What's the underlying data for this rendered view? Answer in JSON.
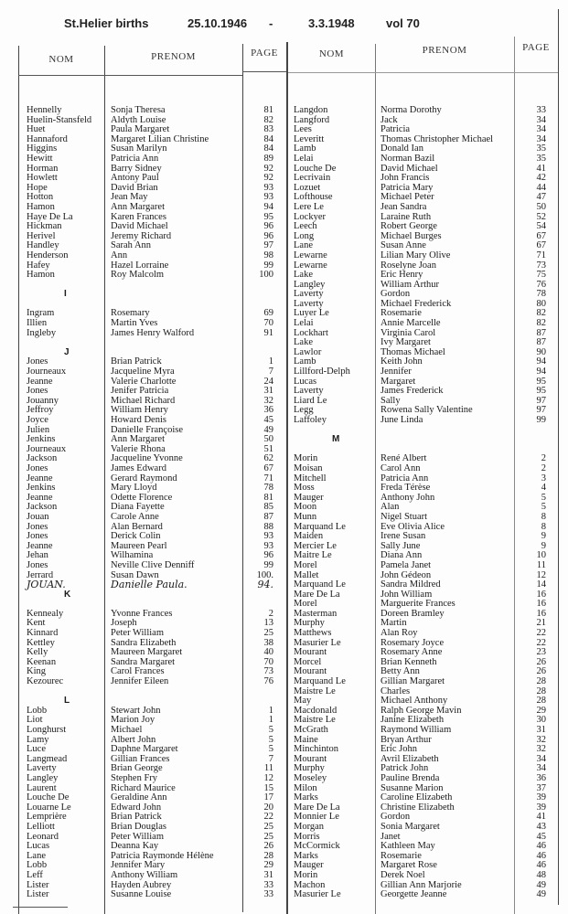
{
  "header": {
    "title": "St.Helier births",
    "date_from": "25.10.1946",
    "dash": "-",
    "date_to": "3.3.1948",
    "volume": "vol 70"
  },
  "columns_header": {
    "nom": "NOM",
    "prenom": "PRENOM",
    "page": "PAGE"
  },
  "left": {
    "sections": [
      {
        "letter": "",
        "entries": [
          {
            "nom": "Hennelly",
            "prenom": "Sonja Theresa",
            "page": "81"
          },
          {
            "nom": "Huelin-Stansfeld",
            "prenom": "Aldyth Louise",
            "page": "82"
          },
          {
            "nom": "Huet",
            "prenom": "Paula Margaret",
            "page": "83"
          },
          {
            "nom": "Hannaford",
            "prenom": "Margaret Lilian Christine",
            "page": "84"
          },
          {
            "nom": "Higgins",
            "prenom": "Susan Marilyn",
            "page": "84"
          },
          {
            "nom": "Hewitt",
            "prenom": "Patricia Ann",
            "page": "89"
          },
          {
            "nom": "Horman",
            "prenom": "Barry Sidney",
            "page": "92"
          },
          {
            "nom": "Howlett",
            "prenom": "Antony Paul",
            "page": "92"
          },
          {
            "nom": "Hope",
            "prenom": "David Brian",
            "page": "93"
          },
          {
            "nom": "Hotton",
            "prenom": "Jean May",
            "page": "93"
          },
          {
            "nom": "Hamon",
            "prenom": "Ann Margaret",
            "page": "94"
          },
          {
            "nom": "Haye De La",
            "prenom": "Karen Frances",
            "page": "95"
          },
          {
            "nom": "Hickman",
            "prenom": "David Michael",
            "page": "96"
          },
          {
            "nom": "Herivel",
            "prenom": "Jeremy Richard",
            "page": "96"
          },
          {
            "nom": "Handley",
            "prenom": "Sarah Ann",
            "page": "97"
          },
          {
            "nom": "Henderson",
            "prenom": "Ann",
            "page": "98"
          },
          {
            "nom": "Hafey",
            "prenom": "Hazel Lorraine",
            "page": "99"
          },
          {
            "nom": "Hamon",
            "prenom": "Roy Malcolm",
            "page": "100"
          }
        ]
      },
      {
        "letter": "I",
        "entries": [
          {
            "nom": "Ingram",
            "prenom": "Rosemary",
            "page": "69"
          },
          {
            "nom": "Illien",
            "prenom": "Martin Yves",
            "page": "70"
          },
          {
            "nom": "Ingleby",
            "prenom": "James Henry Walford",
            "page": "91"
          }
        ]
      },
      {
        "letter": "J",
        "entries": [
          {
            "nom": "Jones",
            "prenom": "Brian Patrick",
            "page": "1"
          },
          {
            "nom": "Journeaux",
            "prenom": "Jacqueline Myra",
            "page": "7"
          },
          {
            "nom": "Jeanne",
            "prenom": "Valerie Charlotte",
            "page": "24"
          },
          {
            "nom": "Jones",
            "prenom": "Jenifer Patricia",
            "page": "31"
          },
          {
            "nom": "Jouanny",
            "prenom": "Michael Richard",
            "page": "32"
          },
          {
            "nom": "Jeffroy",
            "prenom": "William Henry",
            "page": "36"
          },
          {
            "nom": "Joyce",
            "prenom": "Howard Denis",
            "page": "45"
          },
          {
            "nom": "Julien",
            "prenom": "Danielle Françoise",
            "page": "49"
          },
          {
            "nom": "Jenkins",
            "prenom": "Ann Margaret",
            "page": "50"
          },
          {
            "nom": "Journeaux",
            "prenom": "Valerie Rhona",
            "page": "51"
          },
          {
            "nom": "Jackson",
            "prenom": "Jacqueline Yvonne",
            "page": "62"
          },
          {
            "nom": "Jones",
            "prenom": "James Edward",
            "page": "67"
          },
          {
            "nom": "Jeanne",
            "prenom": "Gerard Raymond",
            "page": "71"
          },
          {
            "nom": "Jenkins",
            "prenom": "Mary Lloyd",
            "page": "78"
          },
          {
            "nom": "Jeanne",
            "prenom": "Odette Florence",
            "page": "81"
          },
          {
            "nom": "Jackson",
            "prenom": "Diana Fayette",
            "page": "85"
          },
          {
            "nom": "Jouan",
            "prenom": "Carole Anne",
            "page": "87"
          },
          {
            "nom": "Jones",
            "prenom": "Alan Bernard",
            "page": "88"
          },
          {
            "nom": "Jones",
            "prenom": "Derick Colin",
            "page": "93"
          },
          {
            "nom": "Jeanne",
            "prenom": "Maureen Pearl",
            "page": "93"
          },
          {
            "nom": "Jehan",
            "prenom": "Wilhamina",
            "page": "96"
          },
          {
            "nom": "Jones",
            "prenom": "Neville Clive Denniff",
            "page": "99"
          },
          {
            "nom": "Jerrard",
            "prenom": "Susan Dawn",
            "page": "100."
          },
          {
            "nom": "JOUAN.",
            "prenom": "Danielle Paula.",
            "page": "94.",
            "handwritten": true
          }
        ]
      },
      {
        "letter": "K",
        "entries": [
          {
            "nom": "Kennealy",
            "prenom": "Yvonne Frances",
            "page": "2"
          },
          {
            "nom": "Kent",
            "prenom": "Joseph",
            "page": "13"
          },
          {
            "nom": "Kinnard",
            "prenom": "Peter William",
            "page": "25"
          },
          {
            "nom": "Kettley",
            "prenom": "Sandra Elizabeth",
            "page": "38"
          },
          {
            "nom": "Kelly",
            "prenom": "Maureen Margaret",
            "page": "40"
          },
          {
            "nom": "Keenan",
            "prenom": "Sandra Margaret",
            "page": "70"
          },
          {
            "nom": "King",
            "prenom": "Carol Frances",
            "page": "73"
          },
          {
            "nom": "Kezourec",
            "prenom": "Jennifer Eileen",
            "page": "76"
          }
        ]
      },
      {
        "letter": "L",
        "entries": [
          {
            "nom": "Lobb",
            "prenom": "Stewart John",
            "page": "1"
          },
          {
            "nom": "Liot",
            "prenom": "Marion Joy",
            "page": "1"
          },
          {
            "nom": "Longhurst",
            "prenom": "Michael",
            "page": "5"
          },
          {
            "nom": "Lamy",
            "prenom": "Albert John",
            "page": "5"
          },
          {
            "nom": "Luce",
            "prenom": "Daphne Margaret",
            "page": "5"
          },
          {
            "nom": "Langmead",
            "prenom": "Gillian Frances",
            "page": "7"
          },
          {
            "nom": "Laverty",
            "prenom": "Brian George",
            "page": "11"
          },
          {
            "nom": "Langley",
            "prenom": "Stephen Fry",
            "page": "12"
          },
          {
            "nom": "Laurent",
            "prenom": "Richard Maurice",
            "page": "15"
          },
          {
            "nom": "Louche De",
            "prenom": "Geraldine Ann",
            "page": "17"
          },
          {
            "nom": "Louarne Le",
            "prenom": "Edward John",
            "page": "20"
          },
          {
            "nom": "Lemprière",
            "prenom": "Brian Patrick",
            "page": "22"
          },
          {
            "nom": "Lelliott",
            "prenom": "Brian Douglas",
            "page": "25"
          },
          {
            "nom": "Leonard",
            "prenom": "Peter William",
            "page": "25"
          },
          {
            "nom": "Lucas",
            "prenom": "Deanna Kay",
            "page": "26"
          },
          {
            "nom": "Lane",
            "prenom": "Patricia Raymonde Hélène",
            "page": "28"
          },
          {
            "nom": "Lobb",
            "prenom": "Jennifer Mary",
            "page": "29"
          },
          {
            "nom": "Leff",
            "prenom": "Anthony William",
            "page": "31"
          },
          {
            "nom": "Lister",
            "prenom": "Hayden Aubrey",
            "page": "33"
          },
          {
            "nom": "Lister",
            "prenom": "Susanne Louise",
            "page": "33"
          }
        ]
      }
    ]
  },
  "right": {
    "sections": [
      {
        "letter": "",
        "entries": [
          {
            "nom": "Langdon",
            "prenom": "Norma Dorothy",
            "page": "33"
          },
          {
            "nom": "Langford",
            "prenom": "Jack",
            "page": "34"
          },
          {
            "nom": "Lees",
            "prenom": "Patricia",
            "page": "34"
          },
          {
            "nom": "Leveritt",
            "prenom": "Thomas Christopher Michael",
            "page": "34"
          },
          {
            "nom": "Lamb",
            "prenom": "Donald Ian",
            "page": "35"
          },
          {
            "nom": "Lelai",
            "prenom": "Norman Bazil",
            "page": "35"
          },
          {
            "nom": "Louche De",
            "prenom": "David Michael",
            "page": "41"
          },
          {
            "nom": "Lecrivain",
            "prenom": "John Francis",
            "page": "42"
          },
          {
            "nom": "Lozuet",
            "prenom": "Patricia Mary",
            "page": "44"
          },
          {
            "nom": "Lofthouse",
            "prenom": "Michael Peter",
            "page": "47"
          },
          {
            "nom": "Lere Le",
            "prenom": "Jean Sandra",
            "page": "50"
          },
          {
            "nom": "Lockyer",
            "prenom": "Laraine Ruth",
            "page": "52"
          },
          {
            "nom": "Leech",
            "prenom": "Robert George",
            "page": "54"
          },
          {
            "nom": "Long",
            "prenom": "Michael Burges",
            "page": "67"
          },
          {
            "nom": "Lane",
            "prenom": "Susan Anne",
            "page": "67"
          },
          {
            "nom": "Lewarne",
            "prenom": "Lilian Mary Olive",
            "page": "71"
          },
          {
            "nom": "Lewarne",
            "prenom": "Roselyne Joan",
            "page": "73"
          },
          {
            "nom": "Lake",
            "prenom": "Eric Henry",
            "page": "75"
          },
          {
            "nom": "Langley",
            "prenom": "William Arthur",
            "page": "76"
          },
          {
            "nom": "Laverty",
            "prenom": "Gordon",
            "page": "78"
          },
          {
            "nom": "Laverty",
            "prenom": "Michael Frederick",
            "page": "80"
          },
          {
            "nom": "Luyer Le",
            "prenom": "Rosemarie",
            "page": "82"
          },
          {
            "nom": "Lelai",
            "prenom": "Annie Marcelle",
            "page": "82"
          },
          {
            "nom": "Lockhart",
            "prenom": "Virginia Carol",
            "page": "87"
          },
          {
            "nom": "Lake",
            "prenom": "Ivy Margaret",
            "page": "87"
          },
          {
            "nom": "Lawlor",
            "prenom": "Thomas Michael",
            "page": "90"
          },
          {
            "nom": "Lamb",
            "prenom": "Keith John",
            "page": "94"
          },
          {
            "nom": "Lillford-Delph",
            "prenom": "Jennifer",
            "page": "94"
          },
          {
            "nom": "Lucas",
            "prenom": "Margaret",
            "page": "95"
          },
          {
            "nom": "Laverty",
            "prenom": "James Frederick",
            "page": "95"
          },
          {
            "nom": "Liard Le",
            "prenom": "Sally",
            "page": "97"
          },
          {
            "nom": "Legg",
            "prenom": "Rowena Sally Valentine",
            "page": "97"
          },
          {
            "nom": "Laffoley",
            "prenom": "June Linda",
            "page": "99"
          }
        ]
      },
      {
        "letter": "M",
        "entries": [
          {
            "nom": "Morin",
            "prenom": "René Albert",
            "page": "2"
          },
          {
            "nom": "Moisan",
            "prenom": "Carol Ann",
            "page": "2"
          },
          {
            "nom": "Mitchell",
            "prenom": "Patricia Ann",
            "page": "3"
          },
          {
            "nom": "Moss",
            "prenom": "Freda Térèse",
            "page": "4"
          },
          {
            "nom": "Mauger",
            "prenom": "Anthony John",
            "page": "5"
          },
          {
            "nom": "Moon",
            "prenom": "Alan",
            "page": "5"
          },
          {
            "nom": "Munn",
            "prenom": "Nigel Stuart",
            "page": "8"
          },
          {
            "nom": "Marquand Le",
            "prenom": "Eve Olivia Alice",
            "page": "8"
          },
          {
            "nom": "Maiden",
            "prenom": "Irene Susan",
            "page": "9"
          },
          {
            "nom": "Mercier Le",
            "prenom": "Sally June",
            "page": "9"
          },
          {
            "nom": "Maitre Le",
            "prenom": "Diana Ann",
            "page": "10"
          },
          {
            "nom": "Morel",
            "prenom": "Pamela Janet",
            "page": "11"
          },
          {
            "nom": "Mallet",
            "prenom": "John Gédeon",
            "page": "12"
          },
          {
            "nom": "Marquand Le",
            "prenom": "Sandra Mildred",
            "page": "14"
          },
          {
            "nom": "Mare De La",
            "prenom": "John William",
            "page": "16"
          },
          {
            "nom": "Morel",
            "prenom": "Marguerite Frances",
            "page": "16"
          },
          {
            "nom": "Masterman",
            "prenom": "Doreen Bramley",
            "page": "16"
          },
          {
            "nom": "Murphy",
            "prenom": "Martin",
            "page": "21"
          },
          {
            "nom": "Matthews",
            "prenom": "Alan Roy",
            "page": "22"
          },
          {
            "nom": "Masurier Le",
            "prenom": "Rosemary Joyce",
            "page": "22"
          },
          {
            "nom": "Mourant",
            "prenom": "Rosemary Anne",
            "page": "23"
          },
          {
            "nom": "Morcel",
            "prenom": "Brian Kenneth",
            "page": "26"
          },
          {
            "nom": "Mourant",
            "prenom": "Betty Ann",
            "page": "26"
          },
          {
            "nom": "Marquand Le",
            "prenom": "Gillian Margaret",
            "page": "28"
          },
          {
            "nom": "Maistre Le",
            "prenom": "Charles",
            "page": "28"
          },
          {
            "nom": "May",
            "prenom": "Michael Anthony",
            "page": "28"
          },
          {
            "nom": "Macdonald",
            "prenom": "Ralph George Mavin",
            "page": "29"
          },
          {
            "nom": "Maistre Le",
            "prenom": "Janine Elizabeth",
            "page": "30"
          },
          {
            "nom": "McGrath",
            "prenom": "Raymond William",
            "page": "31"
          },
          {
            "nom": "Maine",
            "prenom": "Bryan Arthur",
            "page": "32"
          },
          {
            "nom": "Minchinton",
            "prenom": "Eric John",
            "page": "32"
          },
          {
            "nom": "Mourant",
            "prenom": "Avril Elizabeth",
            "page": "34"
          },
          {
            "nom": "Murphy",
            "prenom": "Patrick John",
            "page": "34"
          },
          {
            "nom": "Moseley",
            "prenom": "Pauline Brenda",
            "page": "36"
          },
          {
            "nom": "Milon",
            "prenom": "Susanne Marion",
            "page": "37"
          },
          {
            "nom": "Marks",
            "prenom": "Caroline Elizabeth",
            "page": "39"
          },
          {
            "nom": "Mare De La",
            "prenom": "Christine Elizabeth",
            "page": "39"
          },
          {
            "nom": "Monnier Le",
            "prenom": "Gordon",
            "page": "41"
          },
          {
            "nom": "Morgan",
            "prenom": "Sonia Margaret",
            "page": "43"
          },
          {
            "nom": "Morris",
            "prenom": "Janet",
            "page": "45"
          },
          {
            "nom": "McCormick",
            "prenom": "Kathleen May",
            "page": "46"
          },
          {
            "nom": "Marks",
            "prenom": "Rosemarie",
            "page": "46"
          },
          {
            "nom": "Mauger",
            "prenom": "Margaret Rose",
            "page": "46"
          },
          {
            "nom": "Morin",
            "prenom": "Derek Noel",
            "page": "48"
          },
          {
            "nom": "Machon",
            "prenom": "Gillian Ann Marjorie",
            "page": "49"
          },
          {
            "nom": "Masurier Le",
            "prenom": "Georgette Jeanne",
            "page": "49"
          }
        ]
      }
    ]
  }
}
